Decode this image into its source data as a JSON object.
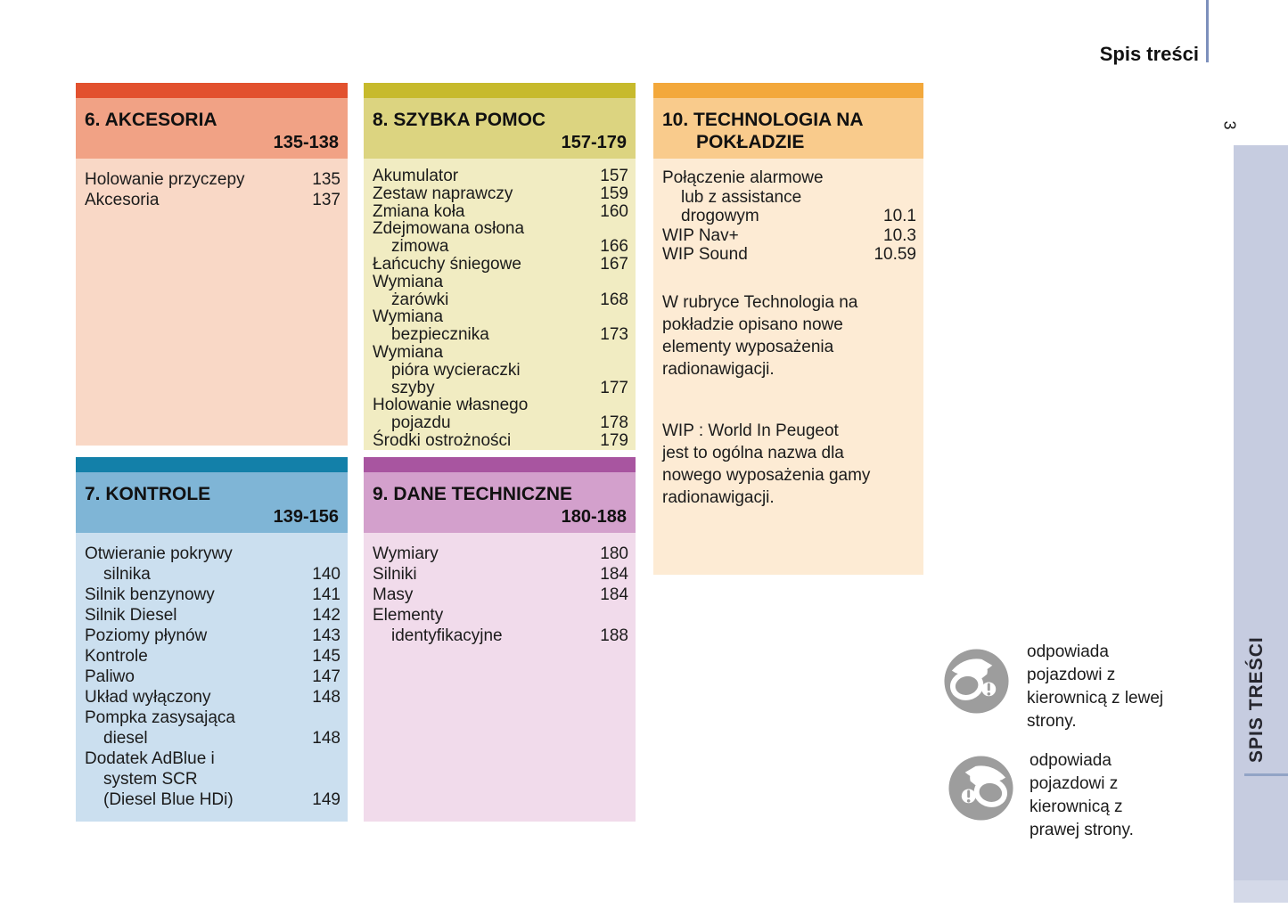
{
  "page": {
    "title": "Spis treści",
    "page_number": "3",
    "sidebar_label": "SPIS TREŚCI"
  },
  "colors": {
    "text": "#1b1b1b",
    "title_rule": "#7d90bc",
    "sidebar_band": "#c6cce0",
    "sidebar_band_tail": "#d4d9e8",
    "sidebar_rule": "#92a4c6",
    "legend_icon_gray": "#9d9d9d"
  },
  "boxes": [
    {
      "id": "akcesoria",
      "title": "6. AKCESORIA",
      "page_range": "135-138",
      "colors": {
        "bar": "#e2512e",
        "band": "#f1a285",
        "body": "#f9d8c6"
      },
      "items": [
        {
          "lines": [
            "Holowanie przyczepy"
          ],
          "page": "135"
        },
        {
          "lines": [
            "Akcesoria"
          ],
          "page": "137"
        }
      ],
      "paragraphs": []
    },
    {
      "id": "szybka-pomoc",
      "title": "8. SZYBKA POMOC",
      "page_range": "157-179",
      "colors": {
        "bar": "#c7ba2c",
        "band": "#dcd480",
        "body": "#f1ecc2"
      },
      "items": [
        {
          "lines": [
            "Akumulator"
          ],
          "page": "157"
        },
        {
          "lines": [
            "Zestaw naprawczy"
          ],
          "page": "159"
        },
        {
          "lines": [
            "Zmiana koła"
          ],
          "page": "160"
        },
        {
          "lines": [
            "Zdejmowana osłona",
            "zimowa"
          ],
          "page": "166"
        },
        {
          "lines": [
            "Łańcuchy śniegowe"
          ],
          "page": "167"
        },
        {
          "lines": [
            "Wymiana",
            "żarówki"
          ],
          "page": "168"
        },
        {
          "lines": [
            "Wymiana",
            "bezpiecznika"
          ],
          "page": "173"
        },
        {
          "lines": [
            "Wymiana",
            "pióra wycieraczki",
            "szyby"
          ],
          "page": "177"
        },
        {
          "lines": [
            "Holowanie własnego",
            "pojazdu"
          ],
          "page": "178"
        },
        {
          "lines": [
            "Środki ostrożności"
          ],
          "page": "179"
        }
      ],
      "paragraphs": []
    },
    {
      "id": "technologia-na-pokladzie",
      "title": "10. TECHNOLOGIA NA POKŁADZIE",
      "page_range": "",
      "colors": {
        "bar": "#f3a83b",
        "band": "#f9cb8c",
        "body": "#fdebd4"
      },
      "items": [
        {
          "lines": [
            "Połączenie alarmowe",
            "lub z assistance",
            "drogowym"
          ],
          "page": "10.1"
        },
        {
          "lines": [
            "WIP Nav+"
          ],
          "page": "10.3"
        },
        {
          "lines": [
            "WIP Sound"
          ],
          "page": "10.59"
        }
      ],
      "paragraphs": [
        "W rubryce Technologia na\npokładzie opisano nowe\nelementy wyposażenia\nradionawigacji.",
        "WIP : World In Peugeot\njest to ogólna nazwa dla\nnowego wyposażenia gamy\nradionawigacji."
      ]
    },
    {
      "id": "kontrole",
      "title": "7. KONTROLE",
      "page_range": "139-156",
      "colors": {
        "bar": "#1380a9",
        "band": "#7fb5d6",
        "body": "#cbdfef"
      },
      "items": [
        {
          "lines": [
            "Otwieranie pokrywy",
            "silnika"
          ],
          "page": "140"
        },
        {
          "lines": [
            "Silnik benzynowy"
          ],
          "page": "141"
        },
        {
          "lines": [
            "Silnik Diesel"
          ],
          "page": "142"
        },
        {
          "lines": [
            "Poziomy płynów"
          ],
          "page": "143"
        },
        {
          "lines": [
            "Kontrole"
          ],
          "page": "145"
        },
        {
          "lines": [
            "Paliwo"
          ],
          "page": "147"
        },
        {
          "lines": [
            "Układ wyłączony"
          ],
          "page": "148"
        },
        {
          "lines": [
            "Pompka zasysająca",
            "diesel"
          ],
          "page": "148"
        },
        {
          "lines": [
            "Dodatek AdBlue i",
            "system SCR",
            "(Diesel Blue HDi)"
          ],
          "page": "149"
        }
      ],
      "paragraphs": []
    },
    {
      "id": "dane-techniczne",
      "title": "9. DANE TECHNICZNE",
      "page_range": "180-188",
      "colors": {
        "bar": "#a855a0",
        "band": "#d3a0cc",
        "body": "#f1dbeb"
      },
      "items": [
        {
          "lines": [
            "Wymiary"
          ],
          "page": "180"
        },
        {
          "lines": [
            "Silniki"
          ],
          "page": "184"
        },
        {
          "lines": [
            "Masy"
          ],
          "page": "184"
        },
        {
          "lines": [
            "Elementy",
            "identyfikacyjne"
          ],
          "page": "188"
        }
      ],
      "paragraphs": []
    }
  ],
  "legend": [
    {
      "icon": "steering-wheel-left-icon",
      "text": "odpowiada\npojazdowi z\nkierownicą z lewej\nstrony."
    },
    {
      "icon": "steering-wheel-right-icon",
      "text": "odpowiada\npojazdowi z\nkierownicą z\nprawej strony."
    }
  ]
}
